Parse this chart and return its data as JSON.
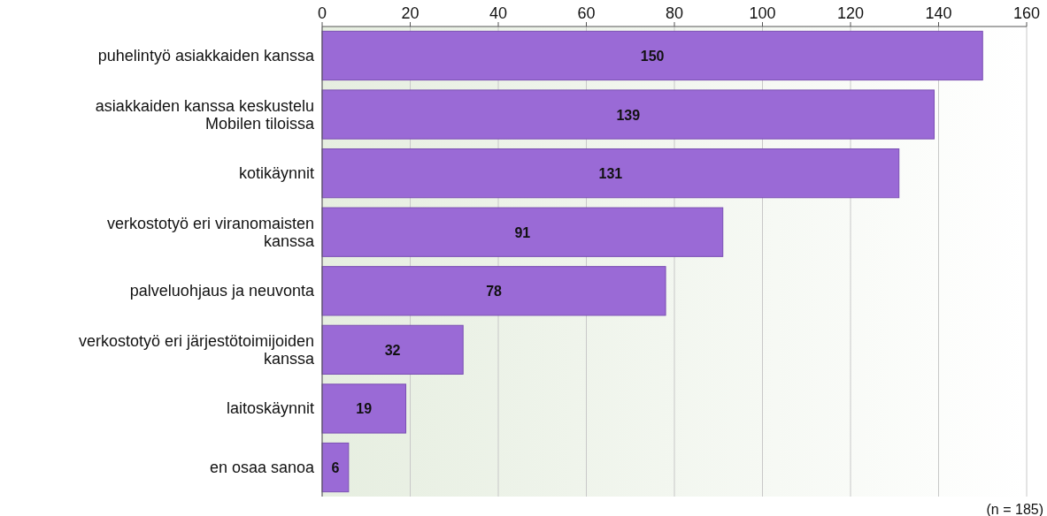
{
  "chart_data": {
    "type": "bar",
    "orientation": "horizontal",
    "categories": [
      "puhelintyö asiakkaiden kanssa",
      "asiakkaiden kanssa keskustelu Mobilen tiloissa",
      "kotikäynnit",
      "verkostotyö eri viranomaisten kanssa",
      "palveluohjaus ja neuvonta",
      "verkostotyö eri järjestötoimijoiden kanssa",
      "laitoskäynnit",
      "en osaa sanoa"
    ],
    "values": [
      150,
      139,
      131,
      91,
      78,
      32,
      19,
      6
    ],
    "color": "#9a6ad6",
    "xlim": [
      0,
      160
    ],
    "xticks": [
      0,
      20,
      40,
      60,
      80,
      100,
      120,
      140,
      160
    ],
    "grid": "x",
    "data_labels": true,
    "annotations": [
      "(n = 185)"
    ]
  }
}
